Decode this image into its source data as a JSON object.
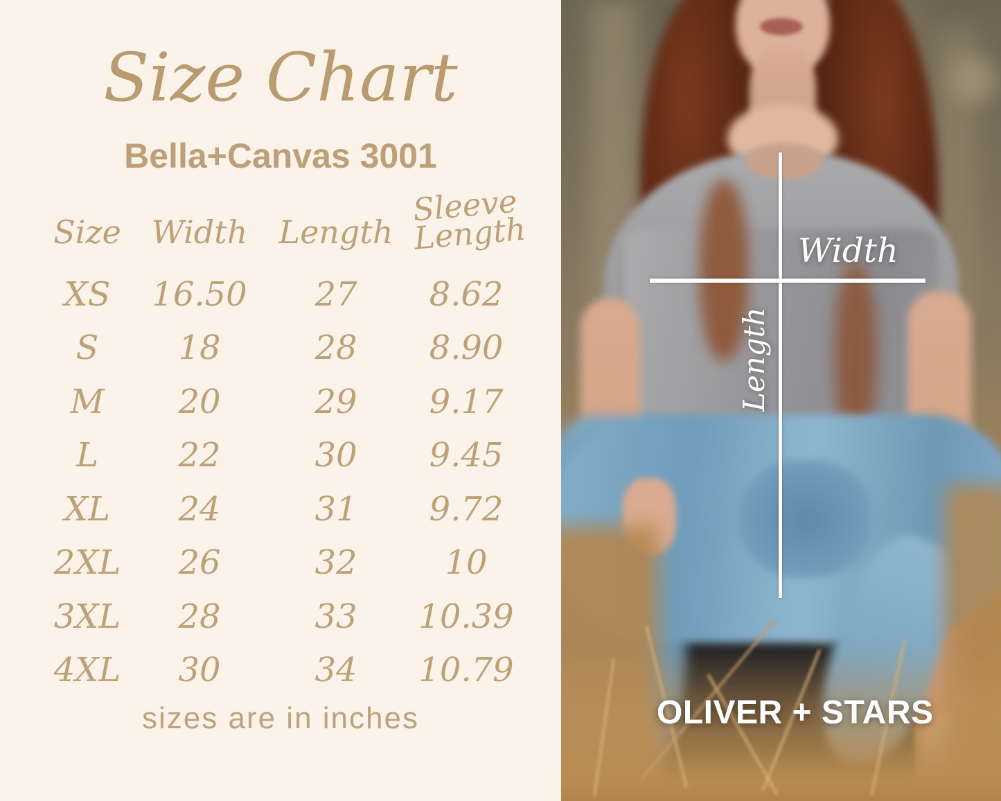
{
  "colors": {
    "panel_background": "#fbf2ea",
    "text_gold": "#bda177",
    "annotation_white": "#ffffff"
  },
  "size_chart": {
    "title": "Size Chart",
    "subtitle": "Bella+Canvas 3001",
    "columns": {
      "size": "Size",
      "width": "Width",
      "length": "Length",
      "sleeve_line1": "Sleeve",
      "sleeve_line2": "Length"
    },
    "rows": [
      {
        "size": "XS",
        "width": "16.50",
        "length": "27",
        "sleeve": "8.62"
      },
      {
        "size": "S",
        "width": "18",
        "length": "28",
        "sleeve": "8.90"
      },
      {
        "size": "M",
        "width": "20",
        "length": "29",
        "sleeve": "9.17"
      },
      {
        "size": "L",
        "width": "22",
        "length": "30",
        "sleeve": "9.45"
      },
      {
        "size": "XL",
        "width": "24",
        "length": "31",
        "sleeve": "9.72"
      },
      {
        "size": "2XL",
        "width": "26",
        "length": "32",
        "sleeve": "10"
      },
      {
        "size": "3XL",
        "width": "28",
        "length": "33",
        "sleeve": "10.39"
      },
      {
        "size": "4XL",
        "width": "30",
        "length": "34",
        "sleeve": "10.79"
      }
    ],
    "footnote": "sizes are in inches"
  },
  "photo": {
    "width_label": "Width",
    "length_label": "Length",
    "brand": "OLIVER + STARS"
  }
}
